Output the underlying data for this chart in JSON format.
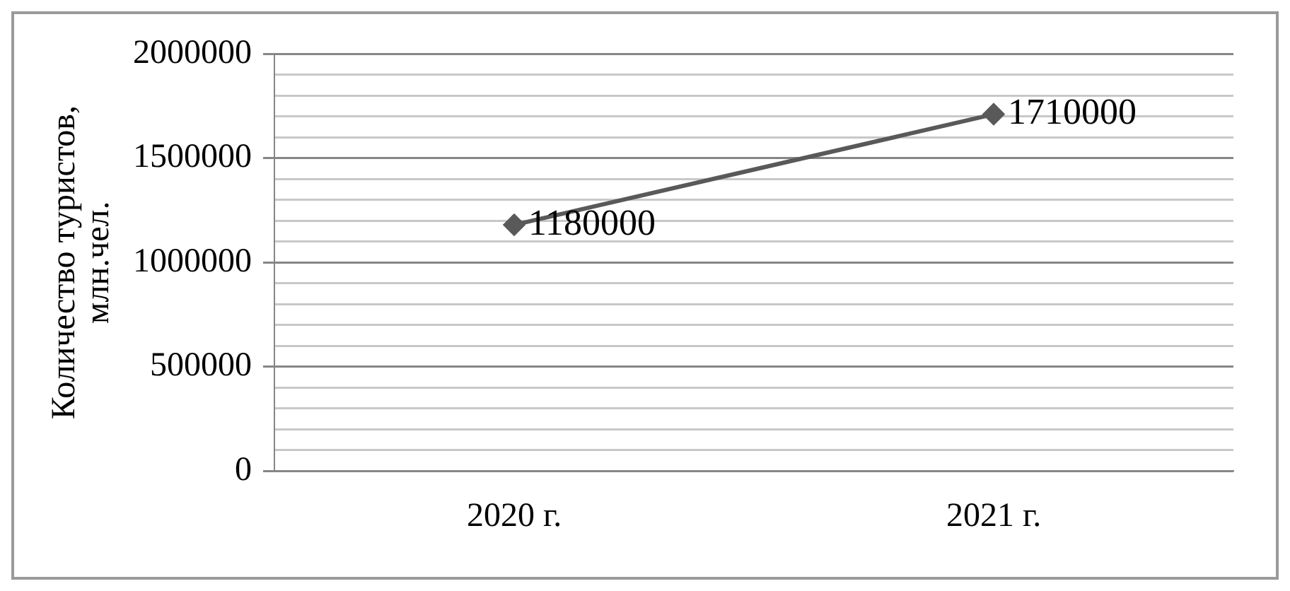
{
  "chart_data": {
    "type": "line",
    "ylabel": "Количество туристов,\nмлн.чел.",
    "categories": [
      "2020 г.",
      "2021 г."
    ],
    "series": [
      {
        "color": "#595959",
        "values": [
          1180000,
          1710000
        ]
      }
    ],
    "ylim": [
      0,
      2000000
    ],
    "yticks": [
      0,
      {
        "value": 100000,
        "label": null
      },
      {
        "value": 200000,
        "label": null
      },
      {
        "value": 300000,
        "label": null
      },
      {
        "value": 400000,
        "label": null
      },
      500000,
      {
        "value": 600000,
        "label": null
      },
      {
        "value": 700000,
        "label": null
      },
      {
        "value": 800000,
        "label": null
      },
      {
        "value": 900000,
        "label": null
      },
      1000000,
      {
        "value": 1100000,
        "label": null
      },
      {
        "value": 1200000,
        "label": null
      },
      {
        "value": 1300000,
        "label": null
      },
      {
        "value": 1400000,
        "label": null
      },
      1500000,
      {
        "value": 1600000,
        "label": null
      },
      {
        "value": 1700000,
        "label": null
      },
      {
        "value": 1800000,
        "label": null
      },
      {
        "value": 1900000,
        "label": null
      },
      2000000
    ],
    "grid": "y",
    "legend": false,
    "marker": "diamond",
    "line_style": "solid",
    "data_labels": true
  }
}
